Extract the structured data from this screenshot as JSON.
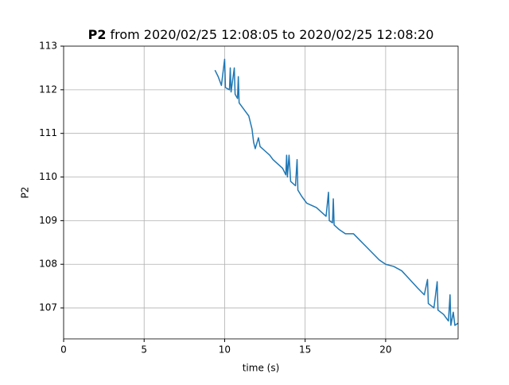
{
  "chart_data": {
    "type": "line",
    "title_series": "P2",
    "title": "from 2020/02/25 12:08:05 to 2020/02/25 12:08:20",
    "xlabel": "time (s)",
    "ylabel": "P2",
    "xlim": [
      0,
      24.5
    ],
    "ylim": [
      106.29,
      113
    ],
    "xticks": [
      0,
      5,
      10,
      15,
      20
    ],
    "yticks": [
      107,
      108,
      109,
      110,
      111,
      112,
      113
    ],
    "grid": true,
    "series": [
      {
        "name": "P2",
        "color": "#1f77b4",
        "x": [
          9.4,
          9.6,
          9.8,
          10.0,
          10.05,
          10.3,
          10.35,
          10.4,
          10.6,
          10.65,
          10.8,
          10.85,
          10.9,
          11.1,
          11.3,
          11.5,
          11.7,
          11.8,
          11.9,
          12.1,
          12.2,
          12.5,
          12.8,
          13.0,
          13.3,
          13.6,
          13.8,
          13.85,
          13.9,
          14.0,
          14.1,
          14.4,
          14.5,
          14.55,
          14.8,
          15.1,
          15.4,
          15.7,
          16.0,
          16.3,
          16.45,
          16.5,
          16.7,
          16.75,
          16.8,
          17.1,
          17.5,
          18.0,
          18.4,
          18.8,
          19.2,
          19.6,
          20.0,
          20.5,
          21.0,
          21.5,
          22.0,
          22.4,
          22.6,
          22.65,
          23.0,
          23.2,
          23.25,
          23.6,
          23.9,
          24.0,
          24.05,
          24.2,
          24.3,
          24.5
        ],
        "values": [
          112.45,
          112.3,
          112.1,
          112.7,
          112.05,
          112.0,
          112.5,
          111.95,
          112.5,
          111.9,
          111.8,
          112.3,
          111.7,
          111.6,
          111.5,
          111.4,
          111.1,
          110.8,
          110.65,
          110.9,
          110.7,
          110.6,
          110.5,
          110.4,
          110.3,
          110.2,
          110.05,
          110.5,
          110.0,
          110.5,
          109.9,
          109.8,
          110.4,
          109.7,
          109.55,
          109.4,
          109.35,
          109.3,
          109.2,
          109.1,
          109.65,
          109.0,
          108.95,
          109.5,
          108.9,
          108.8,
          108.7,
          108.7,
          108.55,
          108.4,
          108.25,
          108.1,
          108.0,
          107.95,
          107.85,
          107.65,
          107.45,
          107.3,
          107.65,
          107.1,
          107.0,
          107.6,
          106.95,
          106.85,
          106.7,
          107.3,
          106.6,
          106.9,
          106.6,
          106.65
        ]
      }
    ]
  }
}
